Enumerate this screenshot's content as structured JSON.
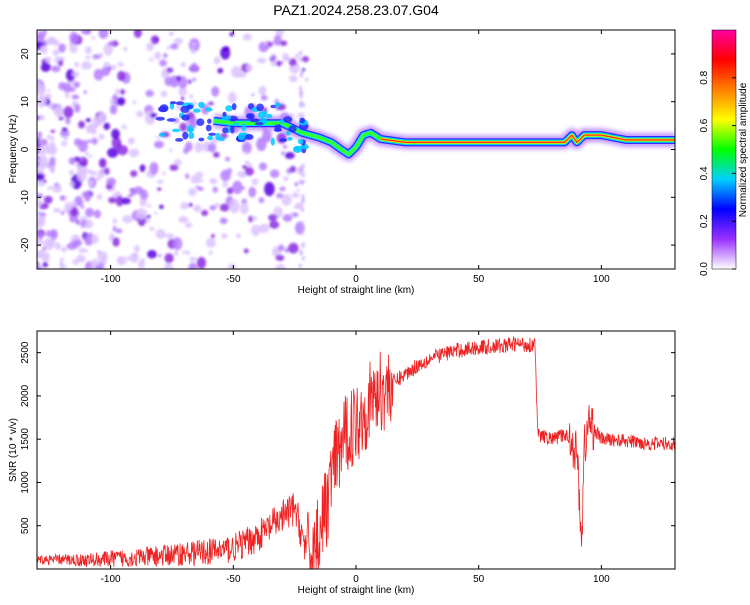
{
  "title": "PAZ1.2024.258.23.07.G04",
  "chart_data": [
    {
      "type": "heatmap",
      "xlabel": "Height of straight line (km)",
      "ylabel": "Frequency (Hz)",
      "xlim": [
        -130,
        130
      ],
      "ylim": [
        -25,
        25
      ],
      "xticks": [
        -100,
        -50,
        0,
        50,
        100
      ],
      "yticks": [
        -20,
        -10,
        0,
        10,
        20
      ],
      "colorbar": {
        "label": "Normalized spectral amplitude",
        "range": [
          0,
          1
        ],
        "ticks": [
          0.0,
          0.2,
          0.4,
          0.6,
          0.8
        ],
        "tick_labels": [
          "0.0",
          "0.2",
          "0.4",
          "0.6",
          "0.8"
        ],
        "colormap": [
          "#ffffff",
          "#9b30ff",
          "#0000ff",
          "#00d0ff",
          "#00ff00",
          "#ffff00",
          "#ff8000",
          "#ff0000",
          "#ff00a0"
        ]
      },
      "ridge": {
        "x": [
          -58,
          -50,
          -40,
          -30,
          -22,
          -15,
          -10,
          -6,
          -3,
          0,
          3,
          6,
          10,
          20,
          30,
          50,
          70,
          85,
          88,
          90,
          93,
          100,
          110,
          130
        ],
        "y": [
          6,
          5.5,
          5.5,
          5.5,
          3.5,
          2.5,
          1.5,
          0,
          -1,
          0.5,
          3,
          3.5,
          2.2,
          1.5,
          1.5,
          1.5,
          1.5,
          1.5,
          3,
          1.5,
          3,
          3,
          2,
          2
        ]
      },
      "grid": false,
      "legend": "none"
    },
    {
      "type": "line",
      "xlabel": "Height of straight line (km)",
      "ylabel": "SNR (10 * v/v)",
      "xlim": [
        -130,
        130
      ],
      "ylim": [
        0,
        2750
      ],
      "xticks": [
        -100,
        -50,
        0,
        50,
        100
      ],
      "yticks": [
        500,
        1000,
        1500,
        2000,
        2500
      ],
      "color": "#ee2222",
      "series": [
        {
          "x": [
            -130,
            -120,
            -110,
            -100,
            -90,
            -80,
            -70,
            -60,
            -50,
            -45,
            -40,
            -35,
            -30,
            -25,
            -20,
            -18,
            -15,
            -12,
            -10,
            -8,
            -5,
            -3,
            0,
            3,
            5,
            8,
            10,
            15,
            20,
            25,
            30,
            35,
            40,
            50,
            60,
            65,
            70,
            73,
            74,
            80,
            85,
            88,
            90,
            91,
            92,
            93,
            95,
            100,
            110,
            120,
            130
          ],
          "y": [
            100,
            110,
            100,
            120,
            130,
            150,
            180,
            200,
            240,
            300,
            380,
            480,
            600,
            700,
            200,
            150,
            450,
            700,
            1100,
            1250,
            1500,
            1600,
            1700,
            1800,
            1900,
            2000,
            2050,
            2150,
            2250,
            2350,
            2430,
            2480,
            2520,
            2560,
            2580,
            2600,
            2590,
            2600,
            1550,
            1500,
            1550,
            1500,
            1300,
            900,
            250,
            1400,
            1700,
            1500,
            1480,
            1450,
            1450
          ]
        }
      ],
      "grid": false,
      "legend": "none"
    }
  ]
}
